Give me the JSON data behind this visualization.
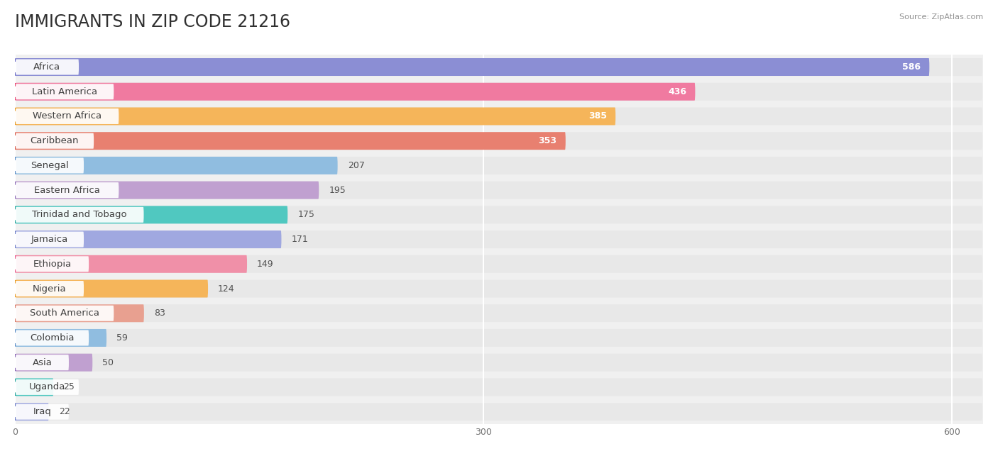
{
  "title": "IMMIGRANTS IN ZIP CODE 21216",
  "source": "Source: ZipAtlas.com",
  "categories": [
    "Africa",
    "Latin America",
    "Western Africa",
    "Caribbean",
    "Senegal",
    "Eastern Africa",
    "Trinidad and Tobago",
    "Jamaica",
    "Ethiopia",
    "Nigeria",
    "South America",
    "Colombia",
    "Asia",
    "Uganda",
    "Iraq"
  ],
  "values": [
    586,
    436,
    385,
    353,
    207,
    195,
    175,
    171,
    149,
    124,
    83,
    59,
    50,
    25,
    22
  ],
  "bar_colors": [
    "#8B8ED4",
    "#F07AA0",
    "#F5B55A",
    "#E88070",
    "#90BDE0",
    "#C0A0D0",
    "#50C8C0",
    "#A0A8E0",
    "#F090A8",
    "#F5B55A",
    "#E8A090",
    "#90BDE0",
    "#C0A0D0",
    "#50C8C0",
    "#A0A8E0"
  ],
  "circle_colors": [
    "#7070C8",
    "#E8507A",
    "#E8A030",
    "#D86050",
    "#6090C8",
    "#9070B8",
    "#30A8A0",
    "#7080C8",
    "#E86090",
    "#E8A030",
    "#D88070",
    "#6090C8",
    "#9070B8",
    "#30A8A0",
    "#7080C8"
  ],
  "bg_color": "#f0f0f0",
  "bar_bg_color": "#e8e8e8",
  "xlim_max": 620,
  "xticks": [
    0,
    300,
    600
  ],
  "title_fontsize": 17,
  "label_fontsize": 9.5,
  "value_fontsize": 9,
  "value_threshold_inside": 350
}
